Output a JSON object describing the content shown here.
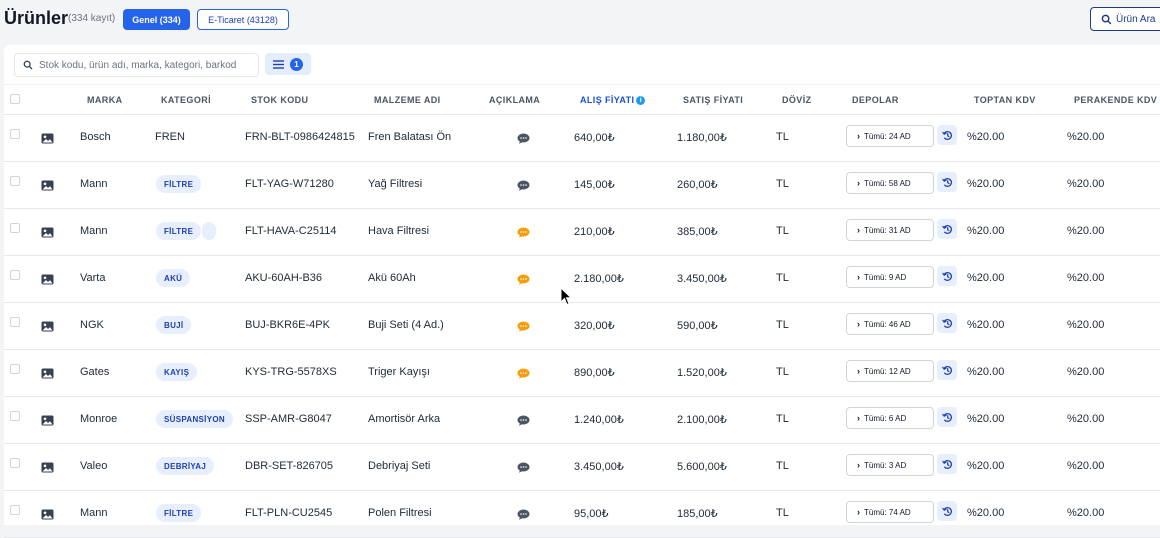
{
  "header": {
    "title": "Ürünler",
    "count": "(334 kayıt)",
    "tabs": [
      {
        "label": "Genel (334)",
        "active": true
      },
      {
        "label": "E-Ticaret (43128)",
        "active": false
      }
    ],
    "search_button": "Ürün Ara"
  },
  "filter": {
    "search_placeholder": "Stok kodu, ürün adı, marka, kategori, barkod",
    "active_filter_count": "1"
  },
  "columns": [
    "MARKA",
    "KATEGORİ",
    "STOK KODU",
    "MALZEME ADI",
    "AÇIKLAMA",
    "ALIŞ FİYATI",
    "SATIŞ FİYATI",
    "DÖVİZ",
    "DEPOLAR",
    "TOPTAN KDV",
    "PERAKENDE KDV"
  ],
  "colors": {
    "accent": "#2563eb",
    "comment_gray": "#4b5563",
    "comment_orange": "#f59e0b",
    "badge_bg": "#e8effc"
  },
  "rows": [
    {
      "marka": "Bosch",
      "kategori": "FREN",
      "kategori_badge": false,
      "stok_kodu": "FRN-BLT-0986424815",
      "malzeme": "Fren Balatası Ön",
      "aciklama_color": "gray",
      "alis": "640,00₺",
      "satis": "1.180,00₺",
      "doviz": "TL",
      "depo": "Tümü: 24 AD",
      "toptan_kdv": "%20.00",
      "perakende_kdv": "%20.00"
    },
    {
      "marka": "Mann",
      "kategori": "FİLTRE",
      "kategori_badge": true,
      "stok_kodu": "FLT-YAG-W71280",
      "malzeme": "Yağ Filtresi",
      "aciklama_color": "gray",
      "alis": "145,00₺",
      "satis": "260,00₺",
      "doviz": "TL",
      "depo": "Tümü: 58 AD",
      "toptan_kdv": "%20.00",
      "perakende_kdv": "%20.00"
    },
    {
      "marka": "Mann",
      "kategori": "FİLTRE",
      "kategori_badge": true,
      "extra_badge": true,
      "stok_kodu": "FLT-HAVA-C25114",
      "malzeme": "Hava Filtresi",
      "aciklama_color": "orange",
      "alis": "210,00₺",
      "satis": "385,00₺",
      "doviz": "TL",
      "depo": "Tümü: 31 AD",
      "toptan_kdv": "%20.00",
      "perakende_kdv": "%20.00"
    },
    {
      "marka": "Varta",
      "kategori": "AKÜ",
      "kategori_badge": true,
      "stok_kodu": "AKU-60AH-B36",
      "malzeme": "Akü 60Ah",
      "aciklama_color": "orange",
      "alis": "2.180,00₺",
      "satis": "3.450,00₺",
      "doviz": "TL",
      "depo": "Tümü: 9 AD",
      "toptan_kdv": "%20.00",
      "perakende_kdv": "%20.00"
    },
    {
      "marka": "NGK",
      "kategori": "BUJİ",
      "kategori_badge": true,
      "stok_kodu": "BUJ-BKR6E-4PK",
      "malzeme": "Buji Seti (4 Ad.)",
      "aciklama_color": "orange",
      "alis": "320,00₺",
      "satis": "590,00₺",
      "doviz": "TL",
      "depo": "Tümü: 46 AD",
      "toptan_kdv": "%20.00",
      "perakende_kdv": "%20.00"
    },
    {
      "marka": "Gates",
      "kategori": "KAYIŞ",
      "kategori_badge": true,
      "stok_kodu": "KYS-TRG-5578XS",
      "malzeme": "Triger Kayışı",
      "aciklama_color": "orange",
      "alis": "890,00₺",
      "satis": "1.520,00₺",
      "doviz": "TL",
      "depo": "Tümü: 12 AD",
      "toptan_kdv": "%20.00",
      "perakende_kdv": "%20.00"
    },
    {
      "marka": "Monroe",
      "kategori": "SÜSPANSİYON",
      "kategori_badge": true,
      "stok_kodu": "SSP-AMR-G8047",
      "malzeme": "Amortisör Arka",
      "aciklama_color": "gray",
      "alis": "1.240,00₺",
      "satis": "2.100,00₺",
      "doviz": "TL",
      "depo": "Tümü: 6 AD",
      "toptan_kdv": "%20.00",
      "perakende_kdv": "%20.00"
    },
    {
      "marka": "Valeo",
      "kategori": "DEBRİYAJ",
      "kategori_badge": true,
      "stok_kodu": "DBR-SET-826705",
      "malzeme": "Debriyaj Seti",
      "aciklama_color": "gray",
      "alis": "3.450,00₺",
      "satis": "5.600,00₺",
      "doviz": "TL",
      "depo": "Tümü: 3 AD",
      "toptan_kdv": "%20.00",
      "perakende_kdv": "%20.00"
    },
    {
      "marka": "Mann",
      "kategori": "FİLTRE",
      "kategori_badge": true,
      "stok_kodu": "FLT-PLN-CU2545",
      "malzeme": "Polen Filtresi",
      "aciklama_color": "gray",
      "alis": "95,00₺",
      "satis": "185,00₺",
      "doviz": "TL",
      "depo": "Tümü: 74 AD",
      "toptan_kdv": "%20.00",
      "perakende_kdv": "%20.00"
    }
  ]
}
